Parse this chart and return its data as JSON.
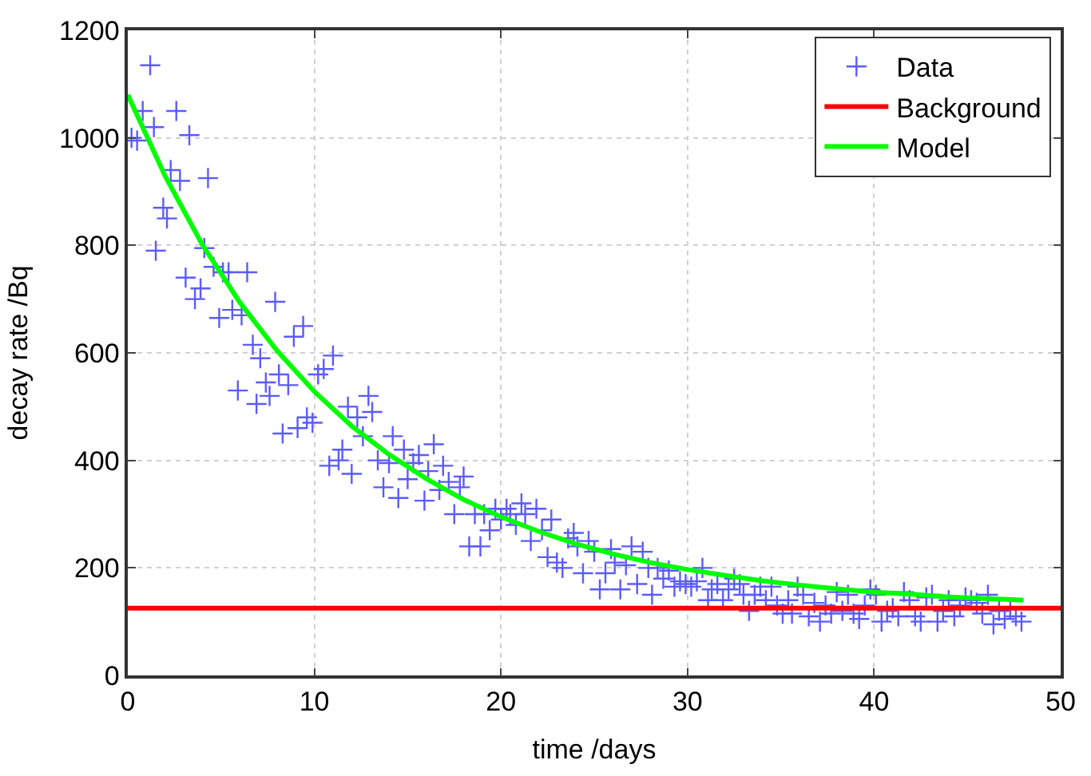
{
  "chart_data": {
    "type": "scatter",
    "xlabel": "time /days",
    "ylabel": "decay rate /Bq",
    "xlim": [
      0,
      50
    ],
    "xticks": [
      0,
      10,
      20,
      30,
      40,
      50
    ],
    "ylim": [
      0,
      1200
    ],
    "yticks": [
      0,
      200,
      400,
      600,
      800,
      1000,
      1200
    ],
    "grid": true,
    "legend": "top right",
    "series": [
      {
        "name": "Data",
        "marker": "cross",
        "color": "#5b5bff",
        "x": [
          0.2,
          0.5,
          0.8,
          1.2,
          1.4,
          1.5,
          1.9,
          2.1,
          2.3,
          2.6,
          2.8,
          3.1,
          3.3,
          3.6,
          3.9,
          4.1,
          4.3,
          4.6,
          4.9,
          5.1,
          5.4,
          5.6,
          5.9,
          6.1,
          6.4,
          6.7,
          6.9,
          7.1,
          7.4,
          7.6,
          7.9,
          8.1,
          8.3,
          8.6,
          8.9,
          9.1,
          9.4,
          9.6,
          9.9,
          10.2,
          10.5,
          10.8,
          11.0,
          11.3,
          11.5,
          11.8,
          12.0,
          12.3,
          12.6,
          12.9,
          13.1,
          13.4,
          13.7,
          14.0,
          14.2,
          14.5,
          14.8,
          15.0,
          15.3,
          15.6,
          15.9,
          16.1,
          16.4,
          16.7,
          16.9,
          17.2,
          17.5,
          17.8,
          18.0,
          18.3,
          18.6,
          18.9,
          19.1,
          19.4,
          19.7,
          20.0,
          20.3,
          20.5,
          20.8,
          21.1,
          21.3,
          21.6,
          21.9,
          22.2,
          22.5,
          22.7,
          23.0,
          23.3,
          23.6,
          23.9,
          24.1,
          24.4,
          24.7,
          25.0,
          25.3,
          25.6,
          25.9,
          26.1,
          26.4,
          26.7,
          27.0,
          27.3,
          27.6,
          27.9,
          28.1,
          28.4,
          28.7,
          29.0,
          29.3,
          29.6,
          29.9,
          30.2,
          30.5,
          30.8,
          31.1,
          31.3,
          31.6,
          31.9,
          32.2,
          32.5,
          32.8,
          33.0,
          33.3,
          33.6,
          33.9,
          34.2,
          34.5,
          34.8,
          35.1,
          35.4,
          35.6,
          35.9,
          36.2,
          36.5,
          36.8,
          37.1,
          37.4,
          37.7,
          38.0,
          38.3,
          38.6,
          38.9,
          39.2,
          39.5,
          39.8,
          40.1,
          40.4,
          40.7,
          41.0,
          41.3,
          41.6,
          41.9,
          42.2,
          42.5,
          42.8,
          43.1,
          43.4,
          43.7,
          44.0,
          44.3,
          44.6,
          44.9,
          45.2,
          45.5,
          45.8,
          46.1,
          46.4,
          46.7,
          47.0,
          47.3,
          47.6,
          47.9
        ],
        "values": [
          1000,
          995,
          1050,
          1135,
          1020,
          790,
          870,
          850,
          940,
          1050,
          920,
          740,
          1005,
          700,
          720,
          795,
          925,
          760,
          665,
          750,
          750,
          680,
          530,
          670,
          750,
          615,
          505,
          590,
          545,
          520,
          695,
          560,
          450,
          540,
          630,
          460,
          650,
          480,
          470,
          560,
          570,
          390,
          595,
          400,
          420,
          500,
          375,
          480,
          445,
          520,
          490,
          400,
          350,
          395,
          445,
          330,
          420,
          365,
          395,
          410,
          325,
          380,
          430,
          345,
          390,
          360,
          300,
          350,
          370,
          240,
          300,
          240,
          300,
          270,
          310,
          290,
          310,
          300,
          280,
          320,
          300,
          250,
          310,
          270,
          220,
          290,
          210,
          200,
          255,
          265,
          240,
          190,
          250,
          230,
          160,
          190,
          235,
          210,
          160,
          205,
          240,
          170,
          230,
          200,
          150,
          200,
          180,
          195,
          165,
          175,
          170,
          165,
          175,
          200,
          140,
          160,
          170,
          140,
          160,
          180,
          170,
          150,
          120,
          150,
          165,
          140,
          165,
          130,
          115,
          140,
          115,
          165,
          150,
          110,
          135,
          100,
          130,
          115,
          155,
          120,
          150,
          115,
          105,
          130,
          160,
          150,
          100,
          120,
          125,
          110,
          155,
          140,
          110,
          100,
          145,
          150,
          100,
          120,
          140,
          110,
          130,
          145,
          140,
          135,
          115,
          150,
          95,
          120,
          105,
          125,
          110,
          100
        ]
      },
      {
        "name": "Background",
        "type": "line",
        "color": "#ff0000",
        "x": [
          0,
          50
        ],
        "values": [
          125,
          125
        ]
      },
      {
        "name": "Model",
        "type": "line",
        "color": "#00ff00",
        "x": [
          0,
          2,
          4,
          6,
          8,
          10,
          12,
          14,
          16,
          18,
          20,
          22,
          24,
          26,
          28,
          30,
          32,
          34,
          36,
          38,
          40,
          42,
          44,
          46,
          48
        ],
        "values": [
          1080,
          929,
          801,
          694,
          604,
          528,
          464,
          411,
          366,
          327,
          295,
          268,
          245,
          226,
          210,
          197,
          186,
          176,
          168,
          161,
          155,
          151,
          146,
          143,
          140
        ]
      }
    ]
  }
}
